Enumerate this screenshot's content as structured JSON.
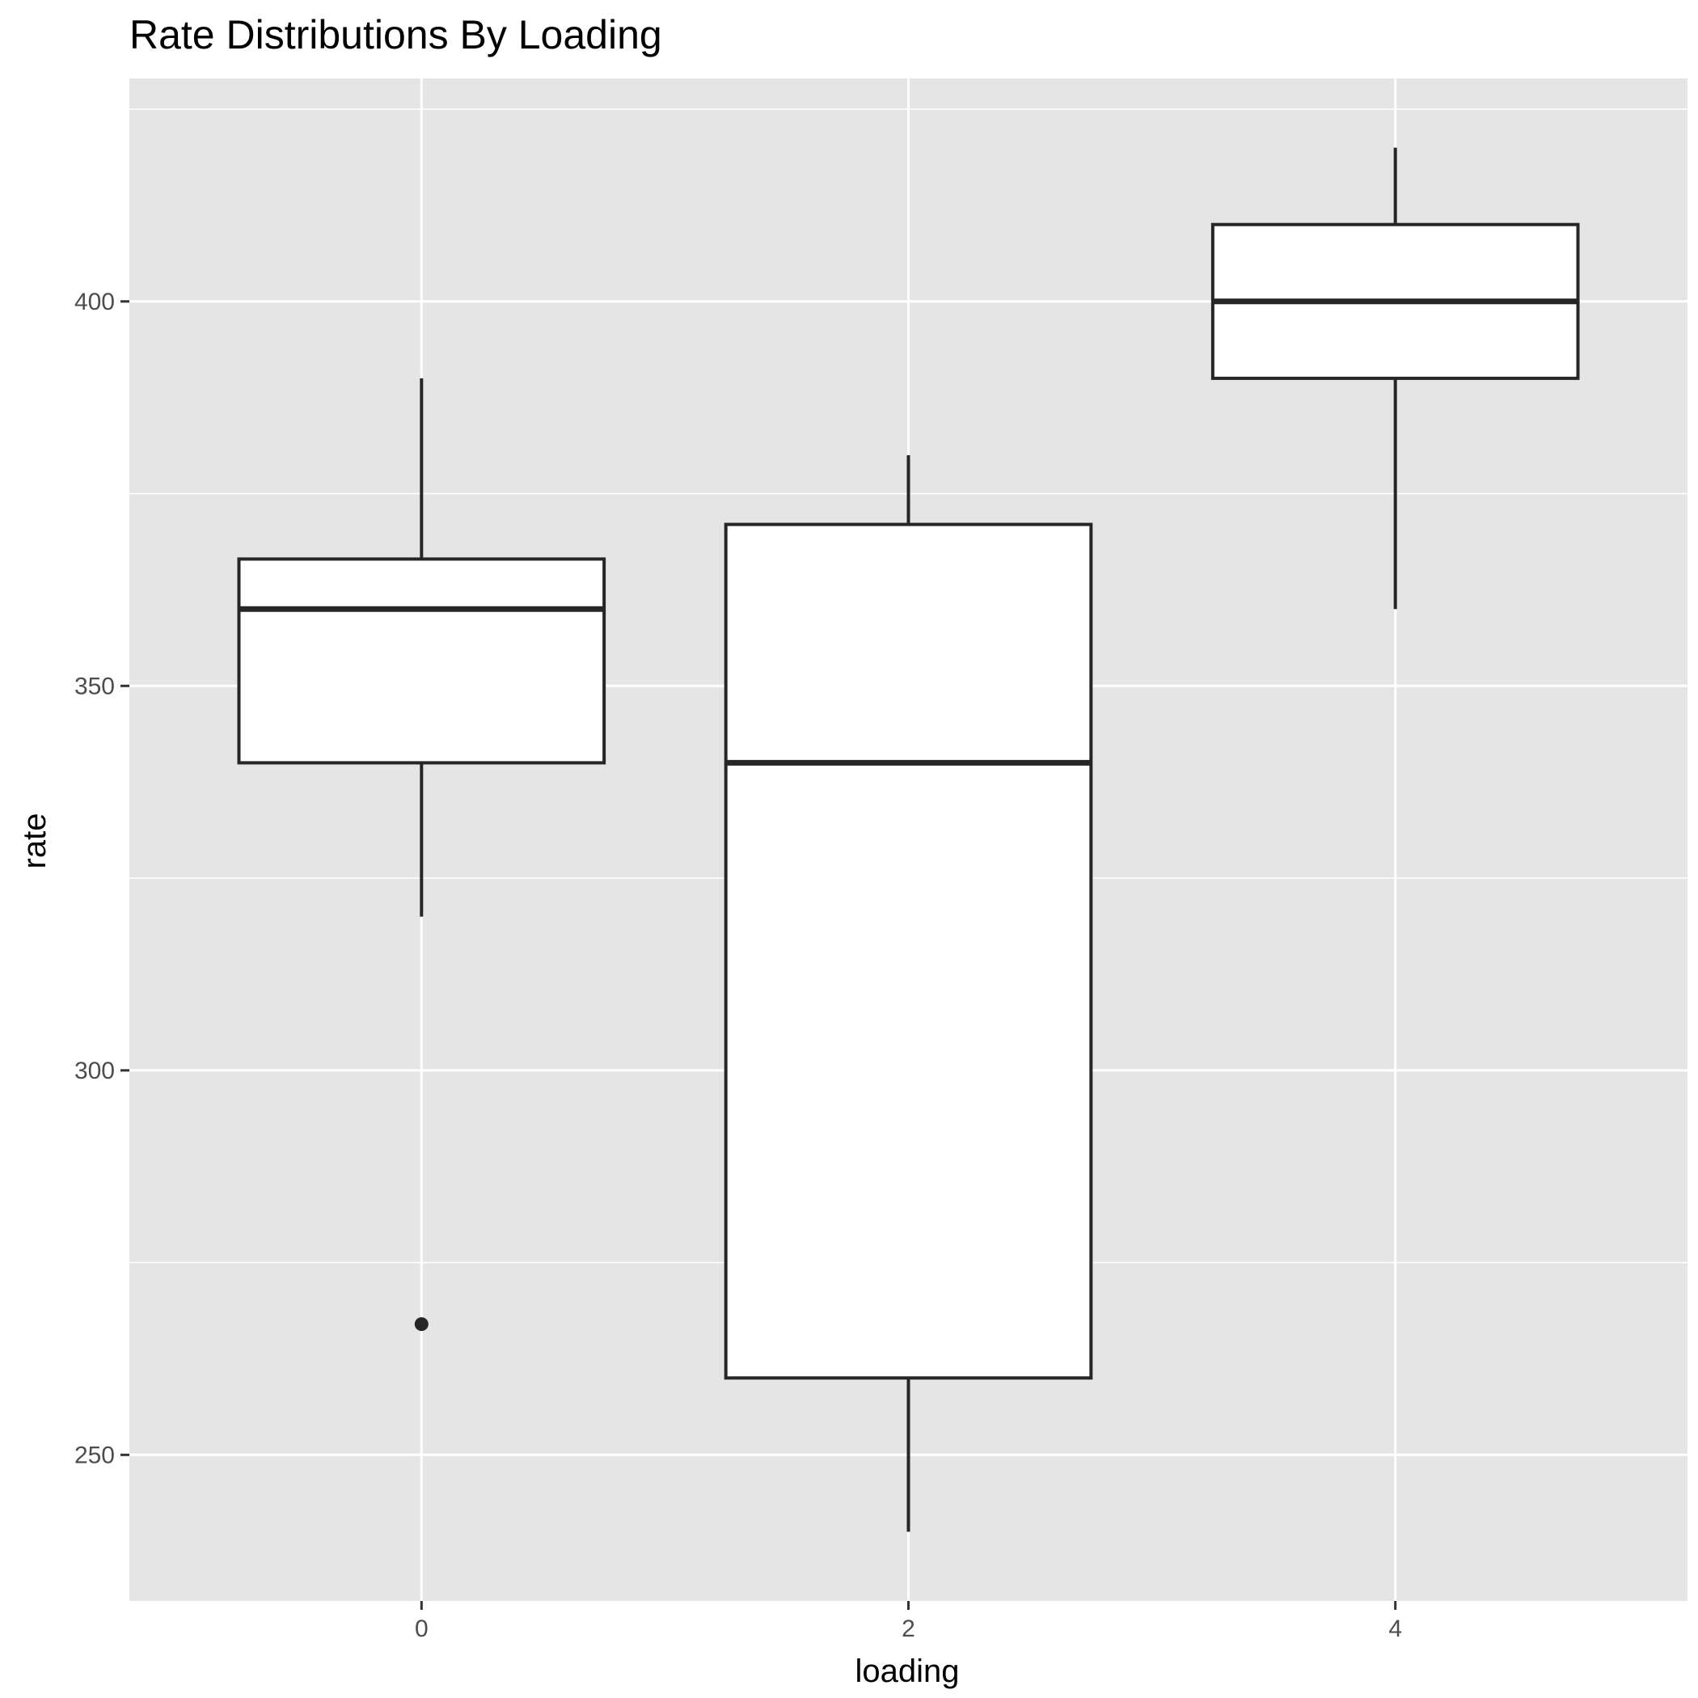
{
  "chart_data": {
    "type": "boxplot",
    "title": "Rate Distributions By Loading",
    "xlabel": "loading",
    "ylabel": "rate",
    "x_ticks": [
      "0",
      "2",
      "4"
    ],
    "y_ticks": [
      250,
      300,
      350,
      400
    ],
    "y_tick_labels": [
      "250",
      "300",
      "350",
      "400"
    ],
    "xlim": [
      -1.2,
      5.2
    ],
    "ylim": [
      231,
      429
    ],
    "grid": true,
    "colors": {
      "panel": "#e5e5e5",
      "grid": "#ffffff",
      "box_fill": "#ffffff",
      "box_line": "#262626"
    },
    "boxes": [
      {
        "x": 0,
        "min": 320,
        "q1": 340,
        "median": 360,
        "q3": 366.5,
        "max": 390,
        "outliers": [
          267
        ]
      },
      {
        "x": 2,
        "min": 240,
        "q1": 260,
        "median": 340,
        "q3": 371,
        "max": 380,
        "outliers": []
      },
      {
        "x": 4,
        "min": 360,
        "q1": 390,
        "median": 400,
        "q3": 410,
        "max": 420,
        "outliers": []
      }
    ]
  }
}
